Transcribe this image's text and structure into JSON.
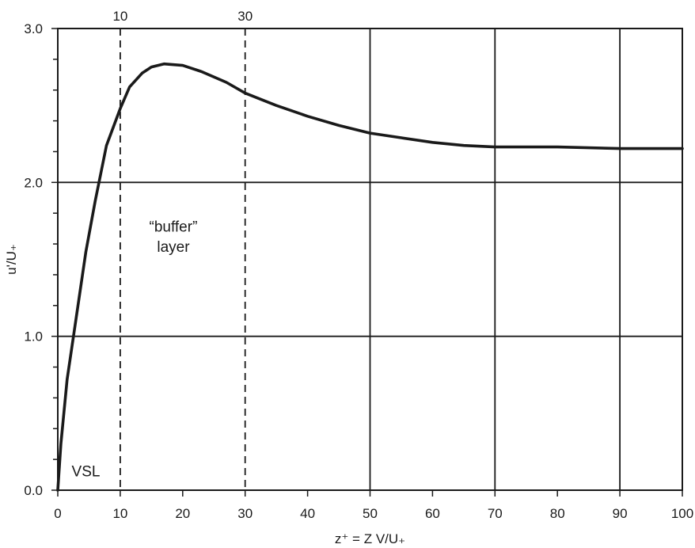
{
  "chart_data": {
    "type": "line",
    "title": "",
    "xlabel": "z⁺ = Z V/U₊",
    "ylabel": "u'/U₊",
    "xlim": [
      0,
      100
    ],
    "ylim": [
      0,
      3
    ],
    "x_ticks": [
      0,
      10,
      20,
      30,
      40,
      50,
      60,
      70,
      80,
      90,
      100
    ],
    "x_tick_labels": [
      "0",
      "10",
      "20",
      "30",
      "40",
      "50",
      "60",
      "70",
      "80",
      "90",
      "100"
    ],
    "y_ticks": [
      0,
      1,
      2,
      3
    ],
    "y_tick_labels": [
      "0.0",
      "1.0",
      "2.0",
      "3.0"
    ],
    "y_minor_step": 0.2,
    "grid": {
      "x_major_at": [
        50,
        70,
        90
      ],
      "y_major_at": [
        1,
        2
      ]
    },
    "dashed_lines": [
      {
        "x": 10,
        "label": "10"
      },
      {
        "x": 30,
        "label": "30"
      }
    ],
    "annotations": [
      {
        "text": "VSL",
        "x": 4.5,
        "y": 0.09
      },
      {
        "text": "“buffer”",
        "x": 18.5,
        "y": 1.68
      },
      {
        "text": "layer",
        "x": 18.5,
        "y": 1.55
      }
    ],
    "series": [
      {
        "x": [
          0,
          0.5,
          1.5,
          2.8,
          4.5,
          6,
          7.8,
          10,
          11.5,
          13.5,
          15,
          17,
          20,
          23,
          27,
          30,
          35,
          40,
          45,
          50,
          55,
          60,
          65,
          70,
          80,
          90,
          100
        ],
        "y": [
          0,
          0.3,
          0.72,
          1.08,
          1.55,
          1.88,
          2.24,
          2.48,
          2.62,
          2.71,
          2.75,
          2.77,
          2.76,
          2.72,
          2.65,
          2.58,
          2.5,
          2.43,
          2.37,
          2.32,
          2.29,
          2.26,
          2.24,
          2.23,
          2.23,
          2.22,
          2.22
        ]
      }
    ]
  }
}
